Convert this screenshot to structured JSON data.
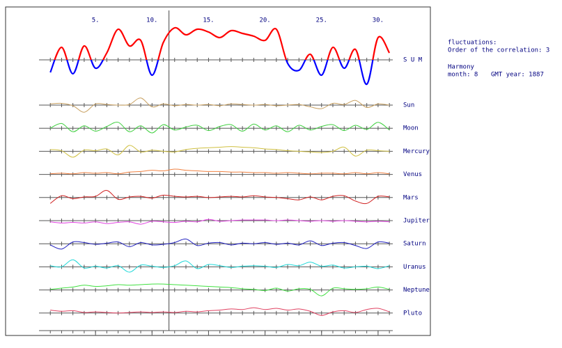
{
  "chart_data": {
    "type": "line",
    "x": [
      1,
      2,
      3,
      4,
      5,
      6,
      7,
      8,
      9,
      10,
      11,
      12,
      13,
      14,
      15,
      16,
      17,
      18,
      19,
      20,
      21,
      22,
      23,
      24,
      25,
      26,
      27,
      28,
      29,
      30,
      31
    ],
    "xlim": [
      0,
      31.3
    ],
    "xticks": [
      {
        "value": 5,
        "label": "5."
      },
      {
        "value": 10,
        "label": "10."
      },
      {
        "value": 15,
        "label": "15."
      },
      {
        "value": 20,
        "label": "20."
      },
      {
        "value": 25,
        "label": "25."
      },
      {
        "value": 30,
        "label": "30."
      }
    ],
    "marker_x": 11.5,
    "sum": {
      "name": "S U M",
      "color_pos": "#ff0000",
      "color_neg": "#0000ff",
      "ylim": [
        -60,
        60
      ],
      "values": [
        -18,
        18,
        -20,
        20,
        -12,
        10,
        44,
        20,
        28,
        -22,
        25,
        46,
        36,
        44,
        40,
        32,
        42,
        38,
        34,
        28,
        44,
        -5,
        -15,
        8,
        -22,
        18,
        -12,
        15,
        -35,
        32,
        10
      ]
    },
    "row_ylim": [
      -20,
      20
    ],
    "series": [
      {
        "name": "Sun",
        "color": "#c8a060",
        "values": [
          2,
          3,
          -1,
          -12,
          2,
          1,
          0,
          1,
          12,
          -3,
          2,
          -1,
          1,
          0,
          1,
          -1,
          2,
          1,
          0,
          1,
          -1,
          0,
          1,
          -3,
          -6,
          3,
          1,
          8,
          -4,
          2,
          0
        ]
      },
      {
        "name": "Moon",
        "color": "#40d040",
        "values": [
          0,
          8,
          -6,
          4,
          -5,
          3,
          10,
          -6,
          4,
          -8,
          6,
          -3,
          2,
          5,
          -4,
          3,
          6,
          -5,
          7,
          -3,
          4,
          -6,
          5,
          -3,
          3,
          6,
          -4,
          5,
          -2,
          10,
          -3
        ]
      },
      {
        "name": "Mercury",
        "color": "#d0c040",
        "values": [
          3,
          1,
          -10,
          2,
          1,
          4,
          -6,
          10,
          -1,
          2,
          0,
          -1,
          3,
          5,
          6,
          7,
          8,
          7,
          6,
          4,
          3,
          1,
          0,
          -1,
          -2,
          0,
          7,
          -8,
          2,
          1,
          0
        ]
      },
      {
        "name": "Venus",
        "color": "#f08040",
        "values": [
          1,
          2,
          1,
          3,
          2,
          3,
          1,
          4,
          5,
          7,
          6,
          9,
          7,
          6,
          5,
          5,
          4,
          4,
          3,
          3,
          2,
          3,
          2,
          1,
          2,
          2,
          1,
          3,
          1,
          3,
          1
        ]
      },
      {
        "name": "Mars",
        "color": "#d02020",
        "values": [
          -10,
          3,
          -2,
          1,
          2,
          12,
          -3,
          1,
          2,
          -1,
          4,
          2,
          1,
          2,
          0,
          1,
          2,
          1,
          3,
          1,
          0,
          -2,
          -4,
          1,
          -4,
          2,
          3,
          -6,
          -10,
          2,
          1
        ]
      },
      {
        "name": "Jupiter",
        "color": "#e040e0",
        "values": [
          -2,
          -4,
          -3,
          -4,
          -2,
          -5,
          -3,
          -2,
          -6,
          -1,
          -2,
          -3,
          -1,
          -2,
          2,
          -1,
          0,
          1,
          1,
          1,
          0,
          1,
          0,
          -1,
          0,
          -1,
          0,
          -1,
          -2,
          -1,
          -2
        ]
      },
      {
        "name": "Saturn",
        "color": "#2020c0",
        "values": [
          -2,
          -9,
          3,
          2,
          -1,
          1,
          3,
          -5,
          2,
          -2,
          -1,
          2,
          8,
          -3,
          1,
          2,
          -2,
          1,
          0,
          2,
          -1,
          1,
          -2,
          5,
          -3,
          1,
          2,
          -3,
          -8,
          3,
          1
        ]
      },
      {
        "name": "Uranus",
        "color": "#20d8d8",
        "values": [
          2,
          0,
          12,
          -2,
          1,
          -2,
          2,
          -9,
          3,
          1,
          -1,
          2,
          10,
          -3,
          4,
          2,
          -1,
          1,
          2,
          1,
          -1,
          4,
          2,
          8,
          1,
          3,
          -2,
          0,
          1,
          -3,
          2
        ]
      },
      {
        "name": "Neptune",
        "color": "#40e040",
        "values": [
          1,
          3,
          5,
          8,
          6,
          7,
          9,
          8,
          9,
          10,
          10,
          9,
          8,
          7,
          6,
          5,
          4,
          2,
          1,
          -1,
          3,
          -2,
          2,
          1,
          -10,
          3,
          2,
          1,
          2,
          5,
          1
        ]
      },
      {
        "name": "Pluto",
        "color": "#e04060",
        "values": [
          5,
          3,
          4,
          1,
          2,
          1,
          0,
          1,
          2,
          1,
          2,
          1,
          3,
          2,
          4,
          5,
          7,
          6,
          9,
          6,
          8,
          5,
          7,
          3,
          -4,
          2,
          4,
          1,
          6,
          8,
          2
        ]
      }
    ]
  },
  "info": {
    "line1": "fluctuations:",
    "line2": "Order of the correlation: 3",
    "line3": "Harmony",
    "month": "month: 8",
    "year": "GMT year: 1887"
  }
}
